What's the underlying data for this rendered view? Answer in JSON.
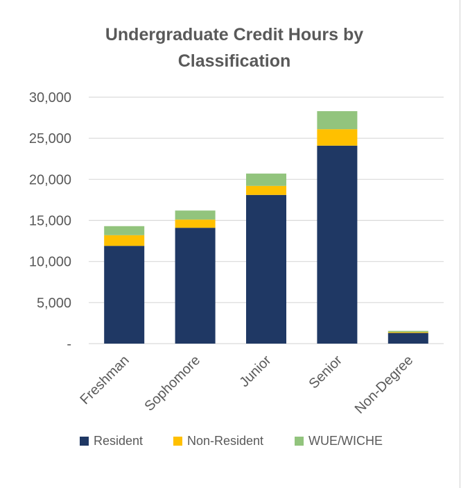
{
  "chart_data": {
    "type": "bar",
    "stacked": true,
    "title_lines": [
      "Undergraduate Credit Hours by",
      "Classification"
    ],
    "categories": [
      "Freshman",
      "Sophomore",
      "Junior",
      "Senior",
      "Non-Degree"
    ],
    "series": [
      {
        "name": "Resident",
        "color": "#1f3864",
        "values": [
          11900,
          14100,
          18100,
          24100,
          1300
        ]
      },
      {
        "name": "Non-Resident",
        "color": "#ffc000",
        "values": [
          1300,
          1000,
          1100,
          2000,
          100
        ]
      },
      {
        "name": "WUE/WICHE",
        "color": "#92c47d",
        "values": [
          1100,
          1100,
          1500,
          2200,
          150
        ]
      }
    ],
    "y_ticks": [
      {
        "value": 0,
        "label": "-"
      },
      {
        "value": 5000,
        "label": "5,000"
      },
      {
        "value": 10000,
        "label": "10,000"
      },
      {
        "value": 15000,
        "label": "15,000"
      },
      {
        "value": 20000,
        "label": "20,000"
      },
      {
        "value": 25000,
        "label": "25,000"
      },
      {
        "value": 30000,
        "label": "30,000"
      }
    ],
    "ylim": [
      0,
      30000
    ],
    "grid": true,
    "legend_position": "bottom"
  }
}
